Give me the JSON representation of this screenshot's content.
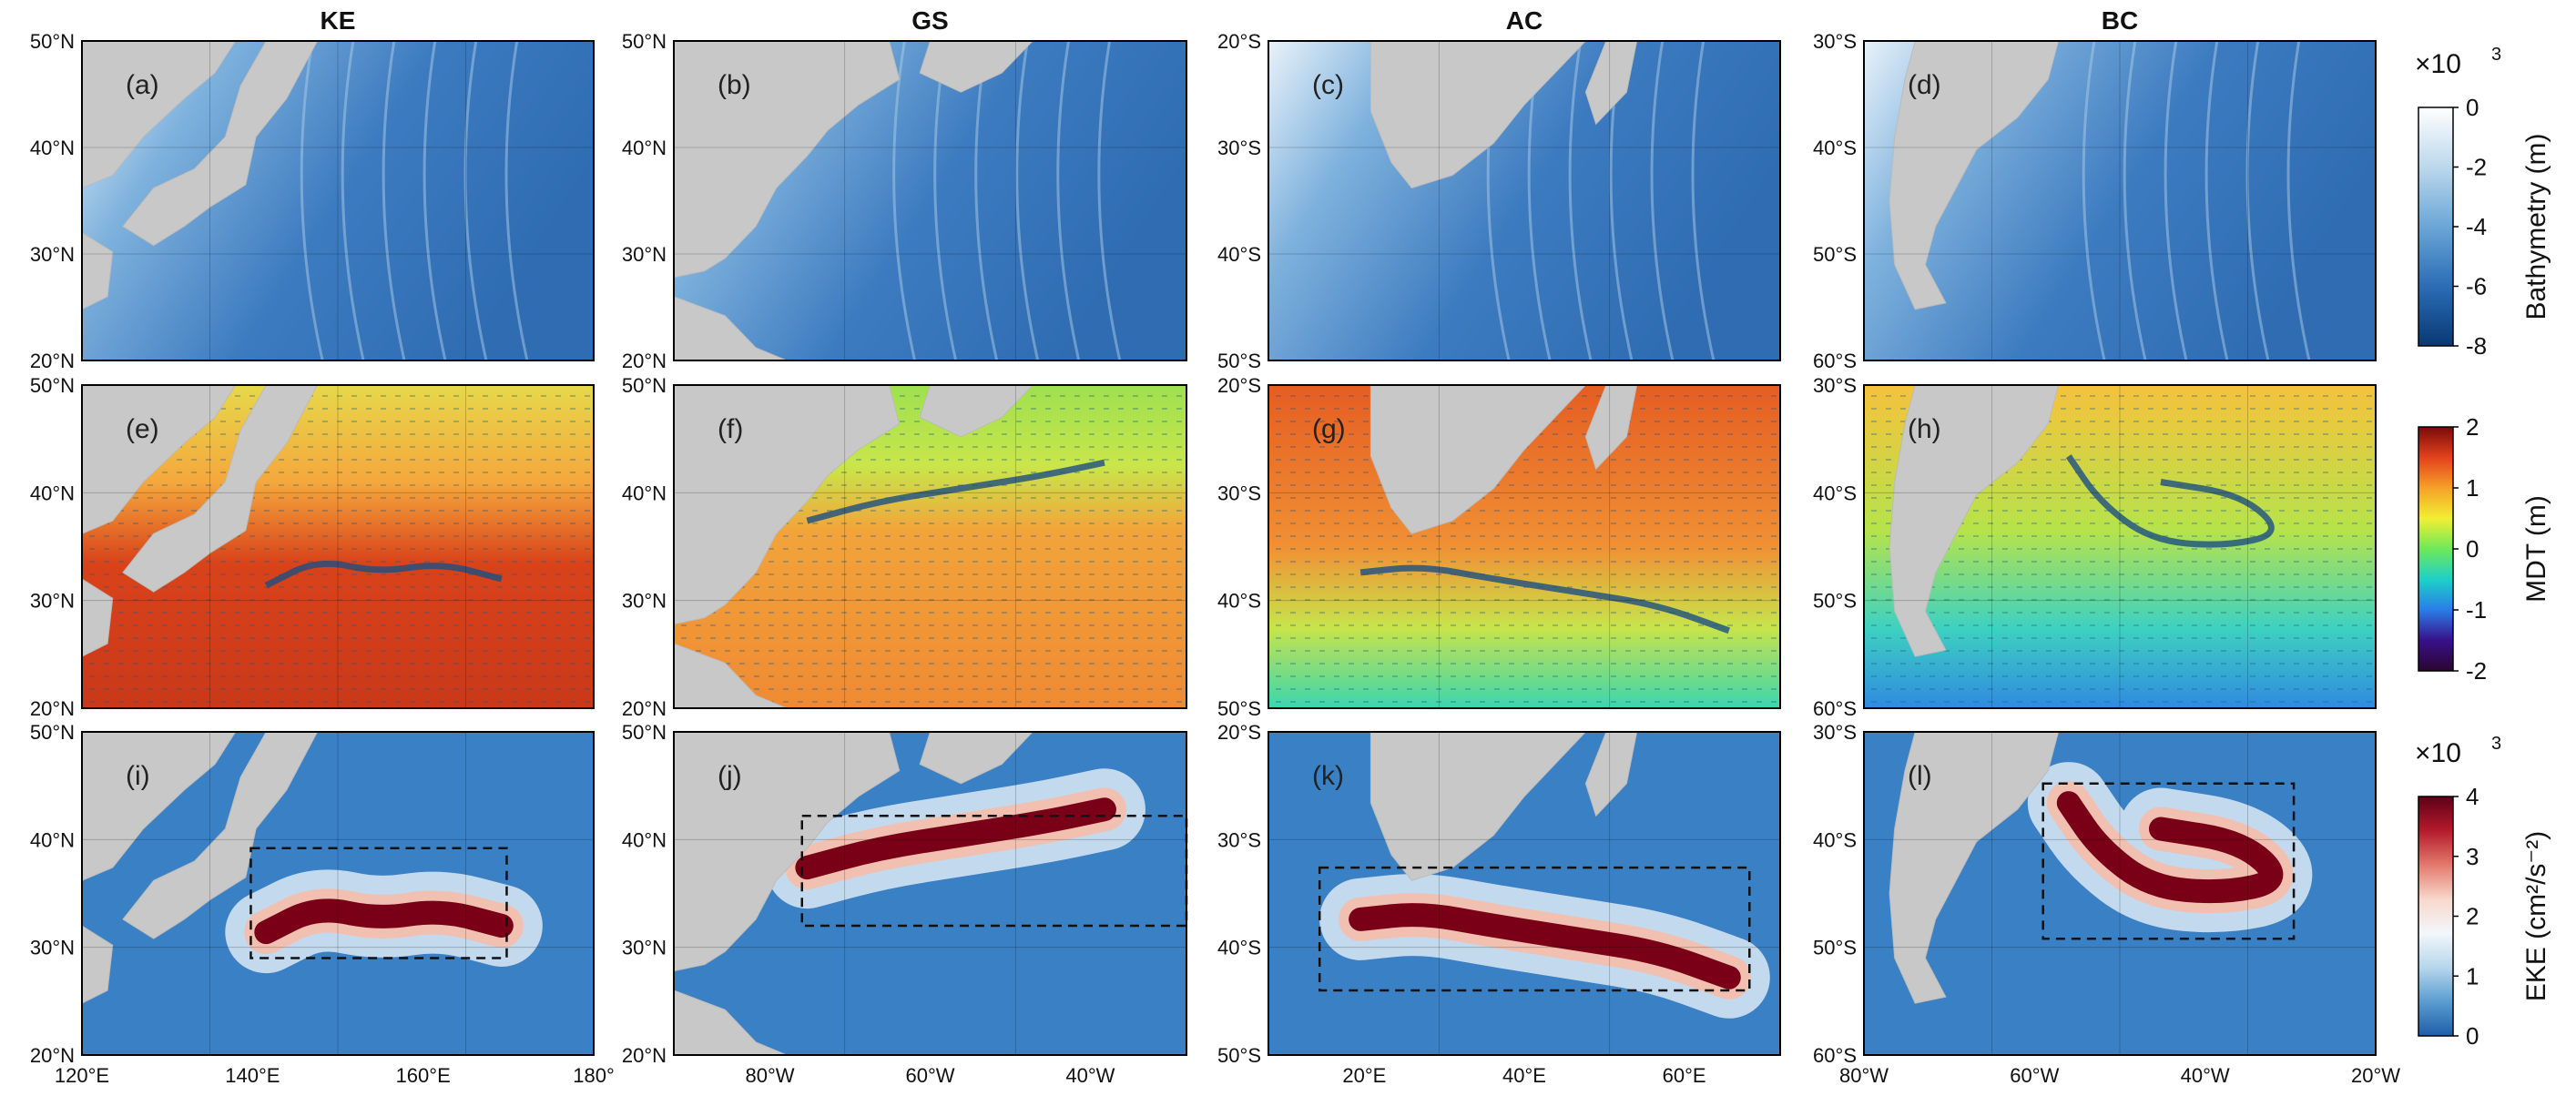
{
  "columns": [
    {
      "title": "KE",
      "lon_ticks": [
        "120°E",
        "140°E",
        "160°E",
        "180°"
      ],
      "lat_ticks": [
        "50°N",
        "40°N",
        "30°N",
        "20°N"
      ]
    },
    {
      "title": "GS",
      "lon_ticks": [
        "80°W",
        "60°W",
        "40°W"
      ],
      "lat_ticks": [
        "50°N",
        "40°N",
        "30°N",
        "20°N"
      ]
    },
    {
      "title": "AC",
      "lon_ticks": [
        "20°E",
        "40°E",
        "60°E"
      ],
      "lat_ticks": [
        "20°S",
        "30°S",
        "40°S",
        "50°S"
      ]
    },
    {
      "title": "BC",
      "lon_ticks": [
        "80°W",
        "60°W",
        "40°W",
        "20°W"
      ],
      "lat_ticks": [
        "30°S",
        "40°S",
        "50°S",
        "60°S"
      ]
    }
  ],
  "panel_labels": [
    "(a)",
    "(b)",
    "(c)",
    "(d)",
    "(e)",
    "(f)",
    "(g)",
    "(h)",
    "(i)",
    "(j)",
    "(k)",
    "(l)"
  ],
  "colorbars": [
    {
      "label": "Bathymetry (m)",
      "multiplier": "×10",
      "multiplier_exp": "3",
      "ticks": [
        "0",
        "-2",
        "-4",
        "-6",
        "-8"
      ],
      "colors": [
        "#ffffff",
        "#bcd8ec",
        "#6aa6d6",
        "#2b6db5",
        "#083873"
      ]
    },
    {
      "label": "MDT (m)",
      "multiplier": "",
      "multiplier_exp": "",
      "ticks": [
        "2",
        "1",
        "0",
        "-1",
        "-2"
      ],
      "colors": [
        "#7a0a0a",
        "#e2421b",
        "#f6a02a",
        "#f2ef33",
        "#6ee85a",
        "#1fd0c8",
        "#2a7de6",
        "#38108a",
        "#2b0630"
      ]
    },
    {
      "label": "EKE (cm²/s⁻²)",
      "multiplier": "×10",
      "multiplier_exp": "3",
      "ticks": [
        "4",
        "3",
        "2",
        "1",
        "0"
      ],
      "colors": [
        "#5e0016",
        "#b31b2c",
        "#e37a6c",
        "#f8d8cc",
        "#f3f7fb",
        "#b7d6ec",
        "#5a9dd0",
        "#1d5ea8"
      ]
    }
  ],
  "colors": {
    "land": "#c8c8c8",
    "ocean_bathy": "#3d7bc0",
    "ocean_bathy_shallow": "#e8f2fa",
    "mdt_high": "#d9431a",
    "mdt_mid": "#f2a43a",
    "mdt_low": "#9ee04f",
    "eke_bg": "#3a80c4",
    "eke_light": "#dce9f4",
    "eke_high": "#7a0018",
    "vectors": "#1f5b8a",
    "box": "#111111"
  }
}
